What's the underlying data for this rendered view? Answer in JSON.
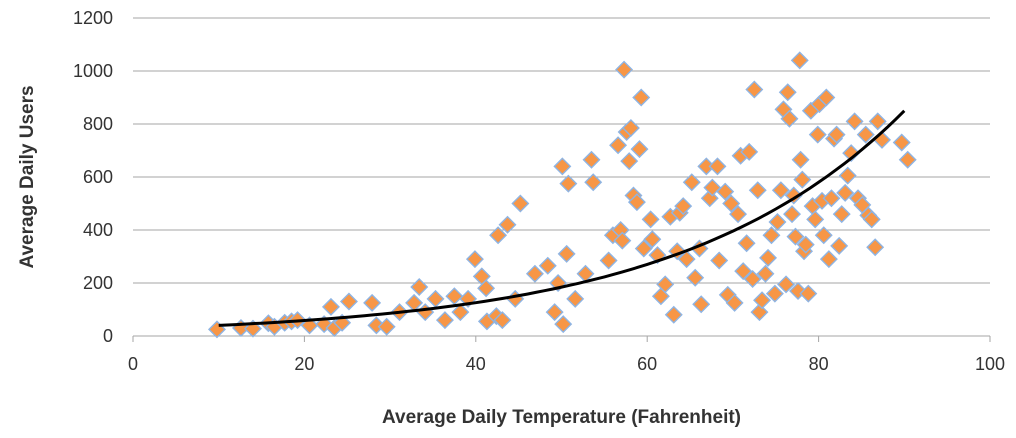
{
  "chart_data": {
    "type": "scatter",
    "xlabel": "Average Daily Temperature (Fahrenheit)",
    "ylabel": "Average Daily Users",
    "xlim": [
      0,
      100
    ],
    "ylim": [
      0,
      1200
    ],
    "xticks": [
      "0",
      "20",
      "40",
      "60",
      "80",
      "100"
    ],
    "yticks": [
      "0",
      "200",
      "400",
      "600",
      "800",
      "1000",
      "1200"
    ],
    "grid": "horizontal",
    "legend": "none",
    "marker": "diamond",
    "marker_color": "#f79646",
    "marker_edge_color": "#8eb4e3",
    "trend_color": "#000000",
    "trendline": {
      "type": "exponential",
      "a": 27.3,
      "b": 0.0382,
      "x_range": [
        10,
        90
      ]
    },
    "points": [
      [
        9.8,
        25
      ],
      [
        12.6,
        30
      ],
      [
        14,
        28
      ],
      [
        15.8,
        48
      ],
      [
        16.5,
        35
      ],
      [
        17.7,
        50
      ],
      [
        18.5,
        55
      ],
      [
        19.2,
        60
      ],
      [
        20.6,
        40
      ],
      [
        22.3,
        45
      ],
      [
        23.1,
        110
      ],
      [
        23.5,
        30
      ],
      [
        24.4,
        50
      ],
      [
        25.2,
        130
      ],
      [
        27.9,
        125
      ],
      [
        28.4,
        40
      ],
      [
        29.6,
        35
      ],
      [
        31.1,
        90
      ],
      [
        32.8,
        125
      ],
      [
        33.4,
        185
      ],
      [
        34.1,
        90
      ],
      [
        35.3,
        140
      ],
      [
        36.4,
        60
      ],
      [
        37.5,
        150
      ],
      [
        38.2,
        90
      ],
      [
        39.1,
        140
      ],
      [
        39.9,
        290
      ],
      [
        40.7,
        225
      ],
      [
        41.2,
        180
      ],
      [
        41.3,
        55
      ],
      [
        42.4,
        75
      ],
      [
        42.6,
        380
      ],
      [
        43.1,
        60
      ],
      [
        43.7,
        420
      ],
      [
        44.6,
        140
      ],
      [
        45.2,
        500
      ],
      [
        46.9,
        235
      ],
      [
        48.4,
        265
      ],
      [
        49.2,
        90
      ],
      [
        49.6,
        200
      ],
      [
        50.1,
        640
      ],
      [
        50.2,
        45
      ],
      [
        50.6,
        310
      ],
      [
        50.8,
        575
      ],
      [
        51.6,
        140
      ],
      [
        52.8,
        235
      ],
      [
        53.5,
        665
      ],
      [
        53.7,
        580
      ],
      [
        55.5,
        285
      ],
      [
        56,
        380
      ],
      [
        56.6,
        720
      ],
      [
        56.9,
        400
      ],
      [
        57.1,
        360
      ],
      [
        57.3,
        1005
      ],
      [
        57.6,
        770
      ],
      [
        57.9,
        660
      ],
      [
        58.1,
        785
      ],
      [
        58.4,
        530
      ],
      [
        58.8,
        505
      ],
      [
        59.1,
        705
      ],
      [
        59.3,
        900
      ],
      [
        59.6,
        330
      ],
      [
        60.4,
        440
      ],
      [
        60.6,
        365
      ],
      [
        61.2,
        305
      ],
      [
        61.6,
        150
      ],
      [
        62.1,
        195
      ],
      [
        62.7,
        450
      ],
      [
        63.1,
        80
      ],
      [
        63.5,
        320
      ],
      [
        63.8,
        465
      ],
      [
        64.2,
        490
      ],
      [
        64.6,
        290
      ],
      [
        65.2,
        580
      ],
      [
        65.6,
        220
      ],
      [
        66.1,
        330
      ],
      [
        66.3,
        120
      ],
      [
        66.9,
        640
      ],
      [
        67.3,
        520
      ],
      [
        67.6,
        560
      ],
      [
        68.2,
        640
      ],
      [
        68.4,
        285
      ],
      [
        69.1,
        545
      ],
      [
        69.4,
        155
      ],
      [
        69.8,
        500
      ],
      [
        70.2,
        125
      ],
      [
        70.6,
        460
      ],
      [
        70.9,
        680
      ],
      [
        71.2,
        245
      ],
      [
        71.6,
        350
      ],
      [
        71.9,
        695
      ],
      [
        72.3,
        215
      ],
      [
        72.5,
        930
      ],
      [
        72.9,
        550
      ],
      [
        73.1,
        90
      ],
      [
        73.4,
        135
      ],
      [
        73.8,
        235
      ],
      [
        74.1,
        295
      ],
      [
        74.5,
        380
      ],
      [
        74.9,
        160
      ],
      [
        75.2,
        430
      ],
      [
        75.6,
        550
      ],
      [
        75.9,
        855
      ],
      [
        76.2,
        195
      ],
      [
        76.4,
        920
      ],
      [
        76.6,
        820
      ],
      [
        76.9,
        460
      ],
      [
        77.1,
        530
      ],
      [
        77.3,
        375
      ],
      [
        77.6,
        170
      ],
      [
        77.8,
        1040
      ],
      [
        77.9,
        665
      ],
      [
        78.1,
        590
      ],
      [
        78.3,
        320
      ],
      [
        78.5,
        345
      ],
      [
        78.8,
        160
      ],
      [
        79.1,
        850
      ],
      [
        79.3,
        490
      ],
      [
        79.6,
        440
      ],
      [
        79.9,
        760
      ],
      [
        80.1,
        875
      ],
      [
        80.4,
        510
      ],
      [
        80.6,
        380
      ],
      [
        80.9,
        900
      ],
      [
        81.2,
        290
      ],
      [
        81.5,
        520
      ],
      [
        81.8,
        745
      ],
      [
        82.1,
        760
      ],
      [
        82.4,
        340
      ],
      [
        82.7,
        460
      ],
      [
        83.1,
        540
      ],
      [
        83.4,
        605
      ],
      [
        83.8,
        690
      ],
      [
        84.2,
        810
      ],
      [
        84.6,
        520
      ],
      [
        85.1,
        495
      ],
      [
        85.5,
        760
      ],
      [
        85.8,
        455
      ],
      [
        86.2,
        440
      ],
      [
        86.6,
        335
      ],
      [
        86.9,
        810
      ],
      [
        87.4,
        740
      ],
      [
        89.7,
        730
      ],
      [
        90.4,
        665
      ]
    ]
  }
}
